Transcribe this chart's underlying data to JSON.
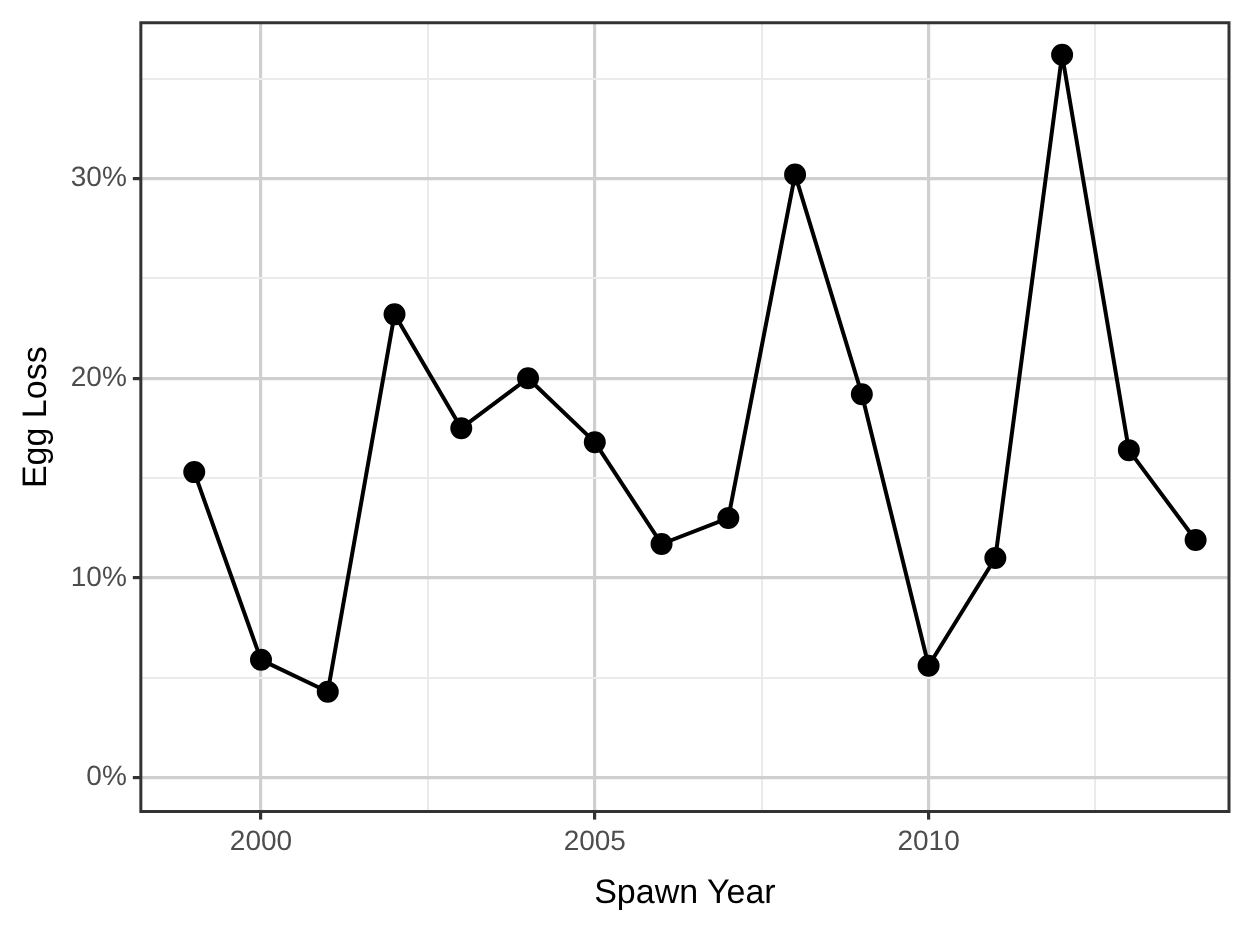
{
  "chart_data": {
    "type": "line",
    "xlabel": "Spawn Year",
    "ylabel": "Egg Loss",
    "x": [
      1999,
      2000,
      2001,
      2002,
      2003,
      2004,
      2005,
      2006,
      2007,
      2008,
      2009,
      2010,
      2011,
      2012,
      2013,
      2014
    ],
    "series": [
      {
        "color": "#000000",
        "values": [
          15.3,
          5.9,
          4.3,
          23.2,
          17.5,
          20.0,
          16.8,
          11.7,
          13.0,
          30.2,
          19.2,
          5.6,
          11.0,
          36.2,
          16.4,
          11.9
        ]
      }
    ],
    "xlim": [
      1998.2,
      2014.5
    ],
    "xticks": [
      2000,
      {
        "value": 2002.5,
        "label": null
      },
      2005,
      {
        "value": 2007.5,
        "label": null
      },
      2010,
      {
        "value": 2012.5,
        "label": null
      }
    ],
    "ylim": [
      -1.7,
      37.8
    ],
    "yticks": [
      {
        "value": 0,
        "label": "0%"
      },
      {
        "value": 5,
        "label": null
      },
      {
        "value": 10,
        "label": "10%"
      },
      {
        "value": 15,
        "label": null
      },
      {
        "value": 20,
        "label": "20%"
      },
      {
        "value": 25,
        "label": null
      },
      {
        "value": 30,
        "label": "30%"
      },
      {
        "value": 35,
        "label": null
      }
    ],
    "grid": true,
    "legend": false,
    "marker": "circle",
    "line_style": "solid"
  }
}
